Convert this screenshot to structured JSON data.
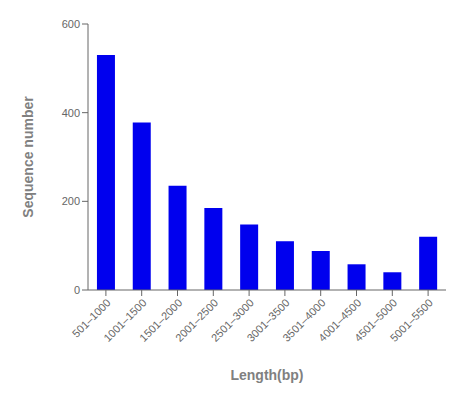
{
  "chart_data": {
    "type": "bar",
    "categories": [
      "501–1000",
      "1001–1500",
      "1501–2000",
      "2001–2500",
      "2501–3000",
      "3001–3500",
      "3501–4000",
      "4001–4500",
      "4501–5000",
      "5001–5500"
    ],
    "values": [
      530,
      378,
      235,
      185,
      148,
      110,
      88,
      58,
      40,
      120
    ],
    "color": "#0000EE",
    "xlabel": "Length(bp)",
    "ylabel": "Sequence number",
    "ylim": [
      0,
      600
    ],
    "yticks": [
      0,
      200,
      400,
      600
    ],
    "grid": false
  }
}
